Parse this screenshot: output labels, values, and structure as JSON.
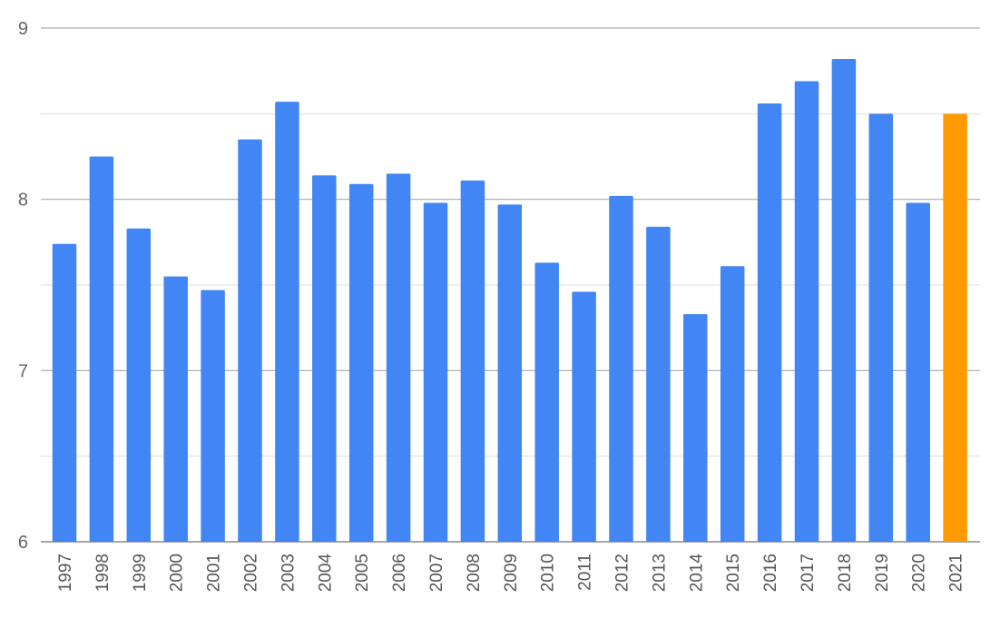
{
  "chart_data": {
    "type": "bar",
    "title": "",
    "xlabel": "",
    "ylabel": "",
    "categories": [
      "1997",
      "1998",
      "1999",
      "2000",
      "2001",
      "2002",
      "2003",
      "2004",
      "2005",
      "2006",
      "2007",
      "2008",
      "2009",
      "2010",
      "2011",
      "2012",
      "2013",
      "2014",
      "2015",
      "2016",
      "2017",
      "2018",
      "2019",
      "2020",
      "2021"
    ],
    "values": [
      7.74,
      8.25,
      7.83,
      7.55,
      7.47,
      8.35,
      8.57,
      8.14,
      8.09,
      8.15,
      7.98,
      8.11,
      7.97,
      7.63,
      7.46,
      8.02,
      7.84,
      7.33,
      7.61,
      8.56,
      8.69,
      8.82,
      8.5,
      7.98,
      8.5
    ],
    "ylim": [
      6,
      9
    ],
    "yticks": [
      6,
      7,
      8,
      9
    ],
    "minor_grid_step": 0.5,
    "grid": true,
    "legend": "none",
    "colors": {
      "bar": "#4285F4",
      "highlight": "#FF9900",
      "major_grid": "#AAAAAA",
      "minor_grid": "#DDDDDD"
    },
    "highlight_category": "2021"
  }
}
